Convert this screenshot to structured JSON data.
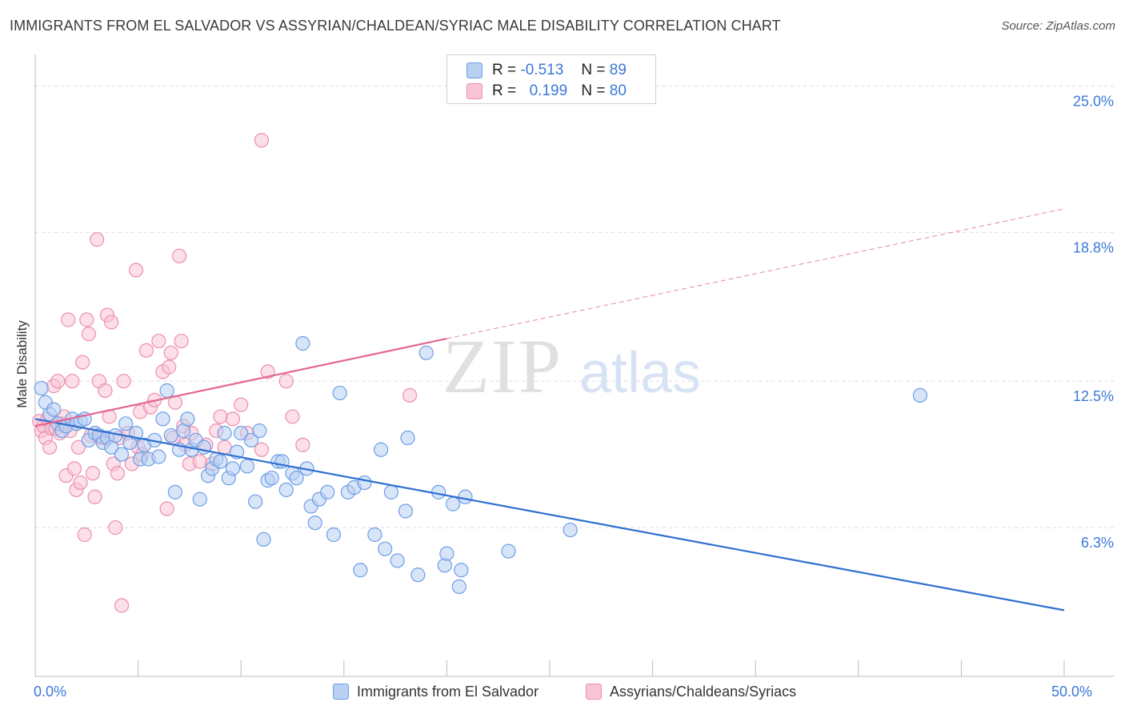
{
  "title": "IMMIGRANTS FROM EL SALVADOR VS ASSYRIAN/CHALDEAN/SYRIAC MALE DISABILITY CORRELATION CHART",
  "source": "Source: ZipAtlas.com",
  "watermark": {
    "zip": "ZIP",
    "atlas": "atlas"
  },
  "legend": {
    "rows": [
      {
        "r_label": "R =",
        "r_value": "-0.513",
        "n_label": "N =",
        "n_value": "89"
      },
      {
        "r_label": "R =",
        "r_value": "0.199",
        "n_label": "N =",
        "n_value": "80"
      }
    ]
  },
  "bottom_legend": [
    "Immigrants from El Salvador",
    "Assyrians/Chaldeans/Syriacs"
  ],
  "colors": {
    "blue_fill": "#b8d0f2",
    "blue_stroke": "#6d9ee6",
    "blue_line": "#2f6fd1",
    "pink_fill": "#f9c5d5",
    "pink_stroke": "#ec8fae",
    "pink_line": "#e4668f",
    "axis_text": "#3b78d8",
    "grid": "#dcdcdc"
  },
  "chart_data": {
    "type": "scatter",
    "title": "IMMIGRANTS FROM EL SALVADOR VS ASSYRIAN/CHALDEAN/SYRIAC MALE DISABILITY CORRELATION CHART",
    "xlabel": "",
    "ylabel": "Male Disability",
    "xlim": [
      0,
      50
    ],
    "ylim": [
      0,
      26.2
    ],
    "x_tick_labels": [
      {
        "value": 0,
        "label": "0.0%"
      },
      {
        "value": 50,
        "label": "50.0%"
      }
    ],
    "y_tick_labels": [
      {
        "value": 6.3,
        "label": "6.3%"
      },
      {
        "value": 12.5,
        "label": "12.5%"
      },
      {
        "value": 18.8,
        "label": "18.8%"
      },
      {
        "value": 25.0,
        "label": "25.0%"
      }
    ],
    "grid": true,
    "legend_position": "top-center",
    "series": [
      {
        "name": "Immigrants from El Salvador",
        "color": "#6d9ee6",
        "trend": {
          "x": [
            0,
            50
          ],
          "y": [
            10.9,
            2.8
          ],
          "style": "solid"
        },
        "points": [
          [
            0.3,
            12.2
          ],
          [
            0.5,
            11.6
          ],
          [
            0.7,
            11.1
          ],
          [
            0.9,
            11.3
          ],
          [
            1.1,
            10.7
          ],
          [
            1.3,
            10.4
          ],
          [
            1.5,
            10.6
          ],
          [
            1.8,
            10.9
          ],
          [
            2.0,
            10.7
          ],
          [
            2.2,
            10.8
          ],
          [
            2.4,
            10.9
          ],
          [
            2.6,
            10.0
          ],
          [
            2.9,
            10.3
          ],
          [
            3.1,
            10.2
          ],
          [
            3.3,
            9.9
          ],
          [
            3.5,
            10.1
          ],
          [
            3.7,
            9.7
          ],
          [
            3.9,
            10.2
          ],
          [
            4.2,
            9.4
          ],
          [
            4.4,
            10.7
          ],
          [
            4.6,
            9.9
          ],
          [
            4.9,
            10.3
          ],
          [
            5.1,
            9.2
          ],
          [
            5.3,
            9.8
          ],
          [
            5.5,
            9.2
          ],
          [
            5.8,
            10.0
          ],
          [
            6.0,
            9.3
          ],
          [
            6.2,
            10.9
          ],
          [
            6.4,
            12.1
          ],
          [
            6.6,
            10.2
          ],
          [
            6.8,
            7.8
          ],
          [
            7.0,
            9.6
          ],
          [
            7.2,
            10.4
          ],
          [
            7.4,
            10.9
          ],
          [
            7.6,
            9.6
          ],
          [
            7.8,
            10.0
          ],
          [
            8.0,
            7.5
          ],
          [
            8.2,
            9.7
          ],
          [
            8.4,
            8.5
          ],
          [
            8.6,
            8.8
          ],
          [
            8.8,
            9.2
          ],
          [
            9.0,
            9.1
          ],
          [
            9.2,
            10.3
          ],
          [
            9.4,
            8.4
          ],
          [
            9.6,
            8.8
          ],
          [
            9.8,
            9.5
          ],
          [
            10.0,
            10.3
          ],
          [
            10.3,
            8.9
          ],
          [
            10.5,
            10.0
          ],
          [
            10.7,
            7.4
          ],
          [
            10.9,
            10.4
          ],
          [
            11.1,
            5.8
          ],
          [
            11.3,
            8.3
          ],
          [
            11.5,
            8.4
          ],
          [
            11.8,
            9.1
          ],
          [
            12.0,
            9.1
          ],
          [
            12.2,
            7.9
          ],
          [
            12.5,
            8.6
          ],
          [
            12.7,
            8.4
          ],
          [
            13.0,
            14.1
          ],
          [
            13.2,
            8.8
          ],
          [
            13.4,
            7.2
          ],
          [
            13.6,
            6.5
          ],
          [
            13.8,
            7.5
          ],
          [
            14.2,
            7.8
          ],
          [
            14.5,
            6.0
          ],
          [
            14.8,
            12.0
          ],
          [
            15.2,
            7.8
          ],
          [
            15.5,
            8.0
          ],
          [
            15.8,
            4.5
          ],
          [
            16.0,
            8.2
          ],
          [
            16.5,
            6.0
          ],
          [
            16.8,
            9.6
          ],
          [
            17.0,
            5.4
          ],
          [
            17.3,
            7.8
          ],
          [
            17.6,
            4.9
          ],
          [
            18.0,
            7.0
          ],
          [
            18.1,
            10.1
          ],
          [
            18.6,
            4.3
          ],
          [
            19.0,
            13.7
          ],
          [
            19.6,
            7.8
          ],
          [
            19.9,
            4.7
          ],
          [
            20.0,
            5.2
          ],
          [
            20.3,
            7.3
          ],
          [
            20.6,
            3.8
          ],
          [
            20.9,
            7.6
          ],
          [
            20.7,
            4.5
          ],
          [
            23.0,
            5.3
          ],
          [
            26.0,
            6.2
          ],
          [
            43.0,
            11.9
          ]
        ]
      },
      {
        "name": "Assyrians/Chaldeans/Syriacs",
        "color": "#ec8fae",
        "trend": {
          "x": [
            0,
            20
          ],
          "y": [
            10.6,
            14.3
          ],
          "style": "solid",
          "dashed_extension": {
            "x": [
              20,
              50
            ],
            "y": [
              14.3,
              19.8
            ]
          }
        },
        "points": [
          [
            0.2,
            10.8
          ],
          [
            0.3,
            10.4
          ],
          [
            0.4,
            10.6
          ],
          [
            0.5,
            10.1
          ],
          [
            0.6,
            10.9
          ],
          [
            0.7,
            9.7
          ],
          [
            0.8,
            10.5
          ],
          [
            0.9,
            12.3
          ],
          [
            1.0,
            10.5
          ],
          [
            1.1,
            12.5
          ],
          [
            1.2,
            10.3
          ],
          [
            1.3,
            10.7
          ],
          [
            1.4,
            11.0
          ],
          [
            1.5,
            8.5
          ],
          [
            1.6,
            15.1
          ],
          [
            1.7,
            10.4
          ],
          [
            1.8,
            12.5
          ],
          [
            1.9,
            8.8
          ],
          [
            2.0,
            7.9
          ],
          [
            2.1,
            9.7
          ],
          [
            2.2,
            8.2
          ],
          [
            2.3,
            13.3
          ],
          [
            2.4,
            6.0
          ],
          [
            2.5,
            15.1
          ],
          [
            2.6,
            14.5
          ],
          [
            2.7,
            10.2
          ],
          [
            2.8,
            8.6
          ],
          [
            2.9,
            7.6
          ],
          [
            3.0,
            18.5
          ],
          [
            3.1,
            12.5
          ],
          [
            3.2,
            10.1
          ],
          [
            3.3,
            10.1
          ],
          [
            3.4,
            12.1
          ],
          [
            3.5,
            15.3
          ],
          [
            3.6,
            11.0
          ],
          [
            3.7,
            15.0
          ],
          [
            3.8,
            9.0
          ],
          [
            3.9,
            6.3
          ],
          [
            4.0,
            8.6
          ],
          [
            4.1,
            10.1
          ],
          [
            4.2,
            3.0
          ],
          [
            4.3,
            12.5
          ],
          [
            4.5,
            10.3
          ],
          [
            4.7,
            9.0
          ],
          [
            4.9,
            17.2
          ],
          [
            5.0,
            9.7
          ],
          [
            5.1,
            11.2
          ],
          [
            5.2,
            9.4
          ],
          [
            5.4,
            13.8
          ],
          [
            5.6,
            11.4
          ],
          [
            5.8,
            11.7
          ],
          [
            6.0,
            14.2
          ],
          [
            6.2,
            12.9
          ],
          [
            6.4,
            7.1
          ],
          [
            6.5,
            13.1
          ],
          [
            6.6,
            13.7
          ],
          [
            6.7,
            10.1
          ],
          [
            6.8,
            11.6
          ],
          [
            7.0,
            17.8
          ],
          [
            7.1,
            14.2
          ],
          [
            7.2,
            10.6
          ],
          [
            7.3,
            9.8
          ],
          [
            7.5,
            9.0
          ],
          [
            7.6,
            10.3
          ],
          [
            8.0,
            9.1
          ],
          [
            8.3,
            9.8
          ],
          [
            8.6,
            9.0
          ],
          [
            8.8,
            10.4
          ],
          [
            9.0,
            11.0
          ],
          [
            9.2,
            9.7
          ],
          [
            9.6,
            10.9
          ],
          [
            10.0,
            11.5
          ],
          [
            10.3,
            10.3
          ],
          [
            11.0,
            9.6
          ],
          [
            11.3,
            12.9
          ],
          [
            12.2,
            12.5
          ],
          [
            12.5,
            11.0
          ],
          [
            13.0,
            9.8
          ],
          [
            18.2,
            11.9
          ],
          [
            11.0,
            22.7
          ]
        ]
      }
    ]
  }
}
